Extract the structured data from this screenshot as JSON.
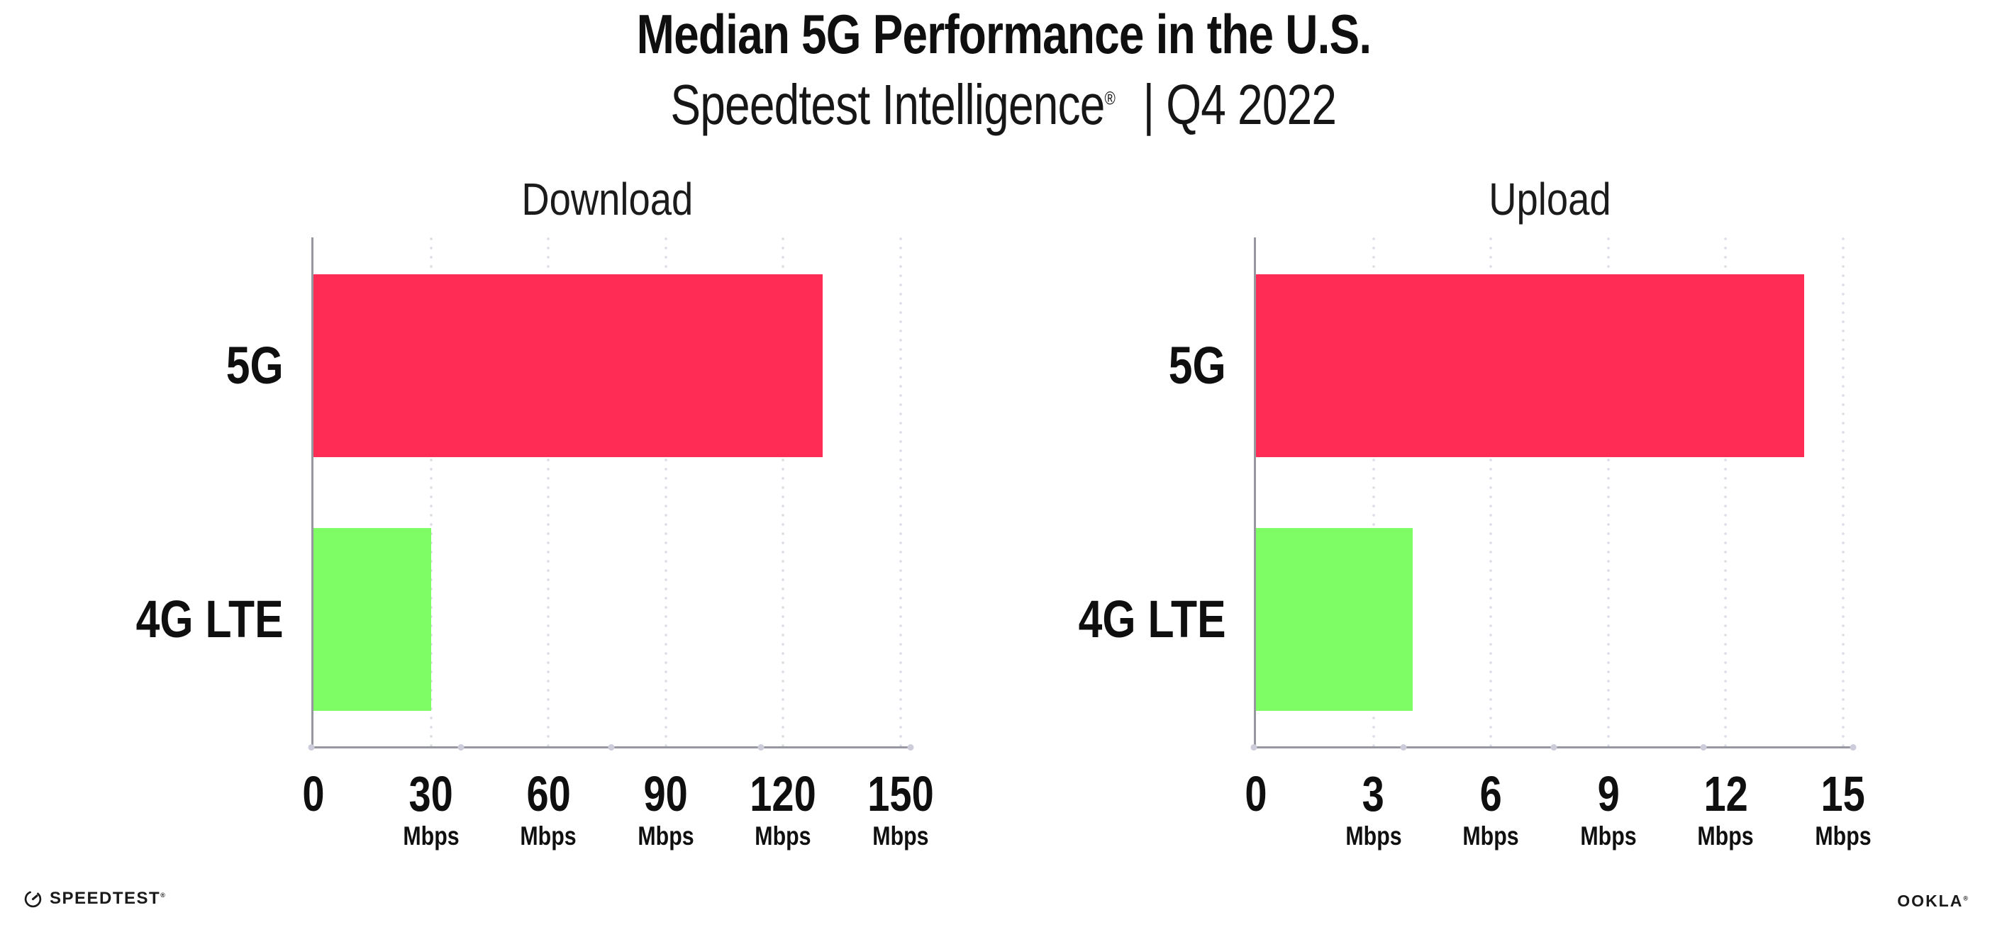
{
  "page": {
    "title": "Median 5G Performance in the U.S.",
    "subtitle_brand": "Speedtest Intelligence",
    "subtitle_reg": "®",
    "subtitle_rest": "| Q4 2022"
  },
  "colors": {
    "bar_5g": "#FF2D55",
    "bar_4g_lte": "#7FFD64",
    "axis_spine": "#97979f",
    "gridline_dot": "#dcdce7",
    "text": "#0f0f0f"
  },
  "chart_data": [
    {
      "type": "bar",
      "orientation": "horizontal",
      "title": "Download",
      "categories": [
        "5G",
        "4G LTE"
      ],
      "values": [
        130,
        30
      ],
      "unit": "Mbps",
      "xlim": [
        0,
        150
      ],
      "xticks": [
        0,
        30,
        60,
        90,
        120,
        150
      ],
      "tick_unit_label": "Mbps",
      "bar_colors": [
        "#FF2D55",
        "#7FFD64"
      ],
      "grid": "vertical-dotted",
      "legend_position": "none"
    },
    {
      "type": "bar",
      "orientation": "horizontal",
      "title": "Upload",
      "categories": [
        "5G",
        "4G LTE"
      ],
      "values": [
        14,
        4
      ],
      "unit": "Mbps",
      "xlim": [
        0,
        15
      ],
      "xticks": [
        0,
        3,
        6,
        9,
        12,
        15
      ],
      "tick_unit_label": "Mbps",
      "bar_colors": [
        "#FF2D55",
        "#7FFD64"
      ],
      "grid": "vertical-dotted",
      "legend_position": "none"
    }
  ],
  "footer": {
    "speedtest_logo_text": "SPEEDTEST",
    "speedtest_reg": "®",
    "ookla_logo_text": "OOKLA",
    "ookla_reg": "®"
  }
}
